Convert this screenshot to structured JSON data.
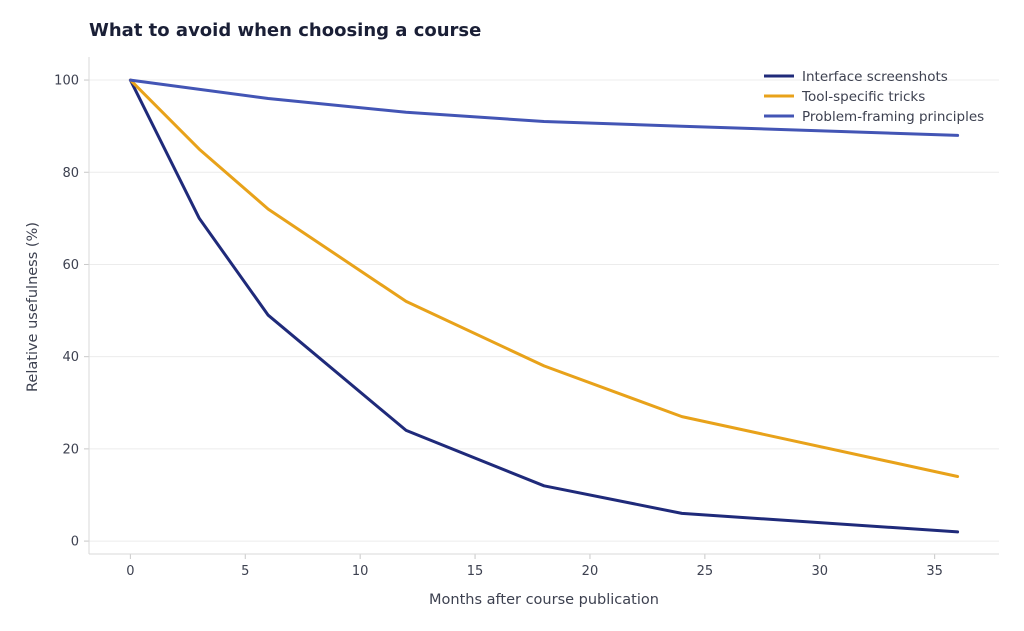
{
  "chart_data": {
    "type": "line",
    "title": "What to avoid when choosing a course",
    "xlabel": "Months after course publication",
    "ylabel": "Relative usefulness (%)",
    "xlim": [
      -1.8,
      37.8
    ],
    "ylim": [
      -2.8,
      105
    ],
    "xticks": [
      0,
      5,
      10,
      15,
      20,
      25,
      30,
      35
    ],
    "yticks": [
      0,
      20,
      40,
      60,
      80,
      100
    ],
    "grid": "horizontal",
    "legend_position": "top-right",
    "series": [
      {
        "name": "Interface screenshots",
        "color": "#1f2a7a",
        "points": [
          [
            0,
            100
          ],
          [
            3,
            70
          ],
          [
            6,
            49
          ],
          [
            12,
            24
          ],
          [
            18,
            12
          ],
          [
            24,
            6
          ],
          [
            36,
            2
          ]
        ]
      },
      {
        "name": "Tool-specific tricks",
        "color": "#e8a21a",
        "points": [
          [
            0,
            100
          ],
          [
            3,
            85
          ],
          [
            6,
            72
          ],
          [
            12,
            52
          ],
          [
            18,
            38
          ],
          [
            24,
            27
          ],
          [
            36,
            14
          ]
        ]
      },
      {
        "name": "Problem-framing principles",
        "color": "#4355b5",
        "points": [
          [
            0,
            100
          ],
          [
            6,
            96
          ],
          [
            12,
            93
          ],
          [
            18,
            91
          ],
          [
            24,
            90
          ],
          [
            36,
            88
          ]
        ]
      }
    ]
  }
}
